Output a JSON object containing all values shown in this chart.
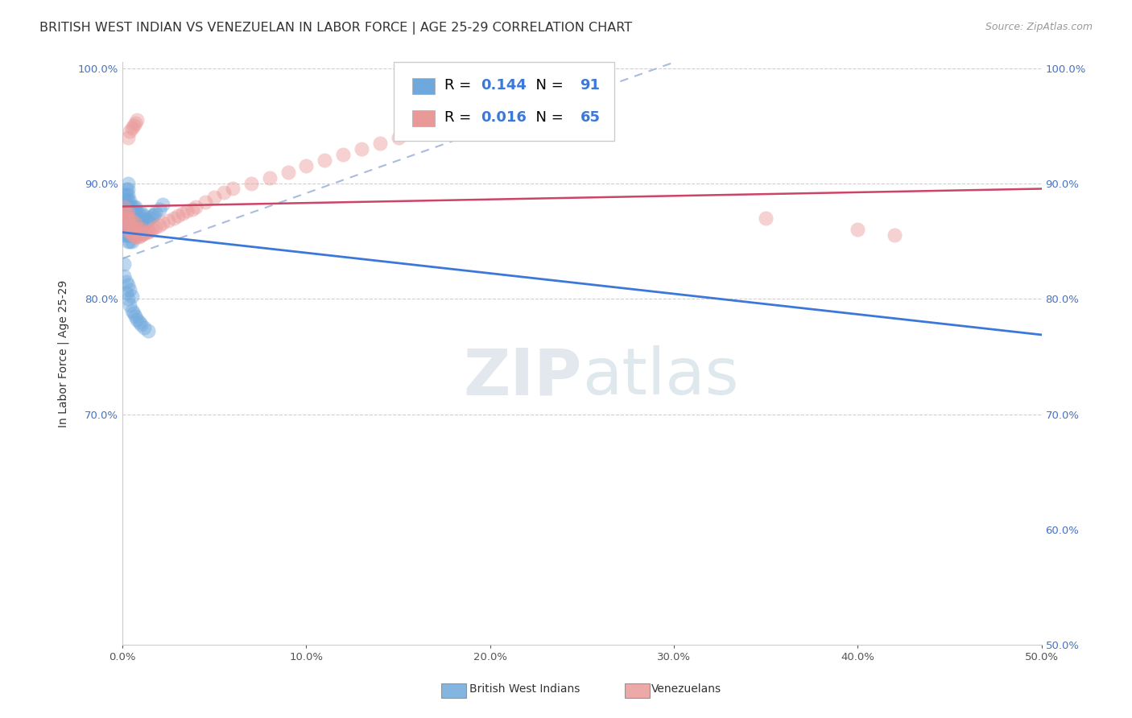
{
  "title": "BRITISH WEST INDIAN VS VENEZUELAN IN LABOR FORCE | AGE 25-29 CORRELATION CHART",
  "source": "Source: ZipAtlas.com",
  "ylabel": "In Labor Force | Age 25-29",
  "xlim": [
    0.0,
    0.5
  ],
  "ylim": [
    0.5,
    1.005
  ],
  "xticks": [
    0.0,
    0.1,
    0.2,
    0.3,
    0.4,
    0.5
  ],
  "xticklabels": [
    "0.0%",
    "10.0%",
    "20.0%",
    "30.0%",
    "40.0%",
    "50.0%"
  ],
  "yticks_left": [
    0.7,
    0.8,
    0.9,
    1.0
  ],
  "ytick_labels_left": [
    "70.0%",
    "80.0%",
    "90.0%",
    "100.0%"
  ],
  "yticks_right": [
    0.5,
    0.6,
    0.7,
    0.8,
    0.9,
    1.0
  ],
  "ytick_labels_right": [
    "50.0%",
    "60.0%",
    "70.0%",
    "80.0%",
    "90.0%",
    "100.0%"
  ],
  "legend_r1": "0.144",
  "legend_n1": "91",
  "legend_r2": "0.016",
  "legend_n2": "65",
  "blue_color": "#6fa8dc",
  "pink_color": "#ea9999",
  "blue_line_color": "#3c78d8",
  "pink_line_color": "#cc4466",
  "tick_color": "#4472c4",
  "background_color": "#ffffff",
  "grid_color": "#d0d0d0",
  "title_fontsize": 11.5,
  "source_fontsize": 9,
  "axis_label_fontsize": 10,
  "tick_fontsize": 9.5,
  "legend_fontsize": 13,
  "marker_size": 13,
  "marker_alpha": 0.45,
  "blue_scatter_x": [
    0.001,
    0.001,
    0.001,
    0.001,
    0.001,
    0.002,
    0.002,
    0.002,
    0.002,
    0.002,
    0.002,
    0.002,
    0.002,
    0.002,
    0.003,
    0.003,
    0.003,
    0.003,
    0.003,
    0.003,
    0.003,
    0.003,
    0.003,
    0.003,
    0.003,
    0.004,
    0.004,
    0.004,
    0.004,
    0.004,
    0.004,
    0.004,
    0.004,
    0.005,
    0.005,
    0.005,
    0.005,
    0.005,
    0.005,
    0.005,
    0.006,
    0.006,
    0.006,
    0.006,
    0.006,
    0.006,
    0.007,
    0.007,
    0.007,
    0.007,
    0.007,
    0.007,
    0.008,
    0.008,
    0.008,
    0.008,
    0.009,
    0.009,
    0.009,
    0.01,
    0.01,
    0.01,
    0.011,
    0.011,
    0.012,
    0.012,
    0.013,
    0.014,
    0.015,
    0.016,
    0.017,
    0.018,
    0.02,
    0.022,
    0.001,
    0.001,
    0.002,
    0.002,
    0.003,
    0.003,
    0.004,
    0.004,
    0.005,
    0.005,
    0.006,
    0.007,
    0.008,
    0.009,
    0.01,
    0.012,
    0.014
  ],
  "blue_scatter_y": [
    0.855,
    0.87,
    0.875,
    0.88,
    0.89,
    0.855,
    0.86,
    0.865,
    0.87,
    0.875,
    0.88,
    0.885,
    0.89,
    0.895,
    0.85,
    0.855,
    0.86,
    0.865,
    0.87,
    0.875,
    0.88,
    0.885,
    0.89,
    0.895,
    0.9,
    0.85,
    0.855,
    0.86,
    0.865,
    0.87,
    0.875,
    0.88,
    0.885,
    0.85,
    0.855,
    0.86,
    0.865,
    0.87,
    0.875,
    0.88,
    0.855,
    0.86,
    0.865,
    0.87,
    0.875,
    0.88,
    0.855,
    0.86,
    0.865,
    0.87,
    0.875,
    0.88,
    0.86,
    0.865,
    0.87,
    0.875,
    0.862,
    0.868,
    0.874,
    0.863,
    0.869,
    0.875,
    0.864,
    0.87,
    0.866,
    0.872,
    0.867,
    0.868,
    0.87,
    0.872,
    0.873,
    0.875,
    0.878,
    0.882,
    0.82,
    0.83,
    0.805,
    0.815,
    0.8,
    0.812,
    0.795,
    0.808,
    0.79,
    0.802,
    0.788,
    0.785,
    0.782,
    0.78,
    0.778,
    0.775,
    0.772
  ],
  "pink_scatter_x": [
    0.001,
    0.001,
    0.001,
    0.002,
    0.002,
    0.002,
    0.003,
    0.003,
    0.003,
    0.003,
    0.004,
    0.004,
    0.004,
    0.005,
    0.005,
    0.005,
    0.006,
    0.006,
    0.007,
    0.007,
    0.007,
    0.008,
    0.008,
    0.009,
    0.009,
    0.01,
    0.01,
    0.011,
    0.012,
    0.013,
    0.014,
    0.015,
    0.016,
    0.018,
    0.02,
    0.022,
    0.025,
    0.028,
    0.03,
    0.033,
    0.035,
    0.038,
    0.04,
    0.045,
    0.05,
    0.055,
    0.06,
    0.07,
    0.08,
    0.09,
    0.1,
    0.11,
    0.12,
    0.13,
    0.14,
    0.15,
    0.003,
    0.004,
    0.005,
    0.006,
    0.007,
    0.008,
    0.35,
    0.4,
    0.42
  ],
  "pink_scatter_y": [
    0.87,
    0.875,
    0.88,
    0.865,
    0.87,
    0.875,
    0.86,
    0.865,
    0.87,
    0.875,
    0.858,
    0.863,
    0.868,
    0.856,
    0.862,
    0.868,
    0.855,
    0.862,
    0.854,
    0.86,
    0.866,
    0.854,
    0.86,
    0.854,
    0.86,
    0.855,
    0.861,
    0.856,
    0.857,
    0.858,
    0.858,
    0.859,
    0.86,
    0.862,
    0.864,
    0.866,
    0.868,
    0.87,
    0.872,
    0.874,
    0.876,
    0.878,
    0.88,
    0.884,
    0.888,
    0.892,
    0.896,
    0.9,
    0.905,
    0.91,
    0.915,
    0.92,
    0.925,
    0.93,
    0.935,
    0.94,
    0.94,
    0.945,
    0.948,
    0.95,
    0.952,
    0.955,
    0.87,
    0.86,
    0.855
  ],
  "dashed_line_x": [
    0.0,
    0.3
  ],
  "dashed_line_y": [
    0.835,
    1.005
  ]
}
